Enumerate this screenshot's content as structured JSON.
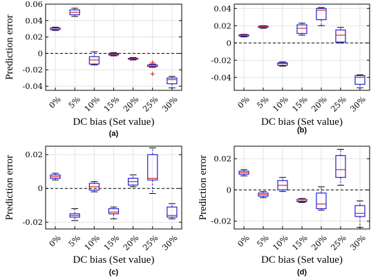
{
  "colors": {
    "box": "#1f1fd6",
    "median": "#e02020",
    "outlier": "#e02020",
    "grid": "#dcdcdc",
    "zero_line": "#000000"
  },
  "chart_data": [
    {
      "type": "box",
      "panel": "(a)",
      "xlabel": "DC bias (Set value)",
      "ylabel": "Prediction error",
      "categories": [
        "0%",
        "5%",
        "10%",
        "15%",
        "20%",
        "25%",
        "30%"
      ],
      "ylim": [
        -0.045,
        0.06
      ],
      "yticks": [
        -0.04,
        -0.02,
        0,
        0.02,
        0.04,
        0.06
      ],
      "ytick_labels": [
        "-0.04",
        "-0.02",
        "0",
        "0.02",
        "0.04",
        "0.06"
      ],
      "grid": true,
      "reference_line": 0,
      "boxes": [
        {
          "min": 0.028,
          "q1": 0.029,
          "median": 0.0295,
          "q3": 0.031,
          "max": 0.032,
          "outliers": []
        },
        {
          "min": 0.045,
          "q1": 0.047,
          "median": 0.05,
          "q3": 0.053,
          "max": 0.055,
          "outliers": []
        },
        {
          "min": -0.014,
          "q1": -0.013,
          "median": -0.008,
          "q3": -0.004,
          "max": 0.002,
          "outliers": []
        },
        {
          "min": -0.003,
          "q1": -0.002,
          "median": -0.001,
          "q3": 0.0,
          "max": 0.001,
          "outliers": []
        },
        {
          "min": -0.008,
          "q1": -0.007,
          "median": -0.0065,
          "q3": -0.006,
          "max": -0.005,
          "outliers": []
        },
        {
          "min": -0.017,
          "q1": -0.016,
          "median": -0.0155,
          "q3": -0.014,
          "max": -0.013,
          "outliers": [
            -0.011,
            -0.025
          ]
        },
        {
          "min": -0.042,
          "q1": -0.037,
          "median": -0.032,
          "q3": -0.03,
          "max": -0.028,
          "outliers": []
        }
      ]
    },
    {
      "type": "box",
      "panel": "(b)",
      "xlabel": "DC bias (Set value)",
      "ylabel": "",
      "categories": [
        "0%",
        "5%",
        "10%",
        "15%",
        "20%",
        "25%",
        "30%"
      ],
      "ylim": [
        -0.055,
        0.045
      ],
      "yticks": [
        -0.04,
        -0.02,
        0,
        0.02,
        0.04
      ],
      "ytick_labels": [
        "-0.04",
        "-0.02",
        "0",
        "0.02",
        "0.04"
      ],
      "grid": true,
      "reference_line": 0,
      "boxes": [
        {
          "min": 0.007,
          "q1": 0.008,
          "median": 0.009,
          "q3": 0.0095,
          "max": 0.01,
          "outliers": []
        },
        {
          "min": 0.017,
          "q1": 0.018,
          "median": 0.019,
          "q3": 0.0195,
          "max": 0.02,
          "outliers": []
        },
        {
          "min": -0.027,
          "q1": -0.026,
          "median": -0.024,
          "q3": -0.023,
          "max": -0.022,
          "outliers": []
        },
        {
          "min": 0.009,
          "q1": 0.011,
          "median": 0.017,
          "q3": 0.021,
          "max": 0.023,
          "outliers": []
        },
        {
          "min": 0.02,
          "q1": 0.027,
          "median": 0.038,
          "q3": 0.04,
          "max": 0.041,
          "outliers": []
        },
        {
          "min": 0.0,
          "q1": 0.001,
          "median": 0.009,
          "q3": 0.015,
          "max": 0.018,
          "outliers": []
        },
        {
          "min": -0.052,
          "q1": -0.048,
          "median": -0.04,
          "q3": -0.038,
          "max": -0.037,
          "outliers": []
        }
      ]
    },
    {
      "type": "box",
      "panel": "(c)",
      "xlabel": "DC bias (Set value)",
      "ylabel": "Prediction error",
      "categories": [
        "0%",
        "5%",
        "10%",
        "15%",
        "20%",
        "25%",
        "30%"
      ],
      "ylim": [
        -0.024,
        0.025
      ],
      "yticks": [
        -0.02,
        0,
        0.02
      ],
      "ytick_labels": [
        "-0.02",
        "0",
        "0.02"
      ],
      "grid": true,
      "reference_line": 0,
      "boxes": [
        {
          "min": 0.005,
          "q1": 0.006,
          "median": 0.007,
          "q3": 0.008,
          "max": 0.009,
          "outliers": []
        },
        {
          "min": -0.019,
          "q1": -0.017,
          "median": -0.016,
          "q3": -0.015,
          "max": -0.012,
          "outliers": []
        },
        {
          "min": -0.002,
          "q1": -0.001,
          "median": 0.001,
          "q3": 0.003,
          "max": 0.004,
          "outliers": []
        },
        {
          "min": -0.018,
          "q1": -0.015,
          "median": -0.014,
          "q3": -0.012,
          "max": -0.011,
          "outliers": []
        },
        {
          "min": 0.001,
          "q1": 0.002,
          "median": 0.004,
          "q3": 0.006,
          "max": 0.008,
          "outliers": []
        },
        {
          "min": -0.003,
          "q1": 0.005,
          "median": 0.006,
          "q3": 0.02,
          "max": 0.024,
          "outliers": []
        },
        {
          "min": -0.018,
          "q1": -0.017,
          "median": -0.016,
          "q3": -0.011,
          "max": -0.009,
          "outliers": []
        }
      ]
    },
    {
      "type": "box",
      "panel": "(d)",
      "xlabel": "DC bias (Set value)",
      "ylabel": "Prediction error",
      "categories": [
        "0%",
        "5%",
        "10%",
        "15%",
        "20%",
        "25%",
        "30%"
      ],
      "ylim": [
        -0.025,
        0.028
      ],
      "yticks": [
        -0.02,
        0,
        0.02
      ],
      "ytick_labels": [
        "-0.02",
        "0",
        "0.02"
      ],
      "grid": true,
      "reference_line": 0,
      "boxes": [
        {
          "min": 0.009,
          "q1": 0.01,
          "median": 0.011,
          "q3": 0.012,
          "max": 0.013,
          "outliers": []
        },
        {
          "min": -0.005,
          "q1": -0.004,
          "median": -0.003,
          "q3": -0.002,
          "max": -0.001,
          "outliers": []
        },
        {
          "min": -0.001,
          "q1": 0.0,
          "median": 0.003,
          "q3": 0.006,
          "max": 0.008,
          "outliers": []
        },
        {
          "min": -0.008,
          "q1": -0.0075,
          "median": -0.007,
          "q3": -0.006,
          "max": -0.0055,
          "outliers": []
        },
        {
          "min": -0.013,
          "q1": -0.012,
          "median": -0.009,
          "q3": -0.002,
          "max": 0.002,
          "outliers": []
        },
        {
          "min": 0.003,
          "q1": 0.008,
          "median": 0.013,
          "q3": 0.022,
          "max": 0.026,
          "outliers": []
        },
        {
          "min": -0.024,
          "q1": -0.017,
          "median": -0.015,
          "q3": -0.01,
          "max": -0.007,
          "outliers": []
        }
      ]
    }
  ]
}
